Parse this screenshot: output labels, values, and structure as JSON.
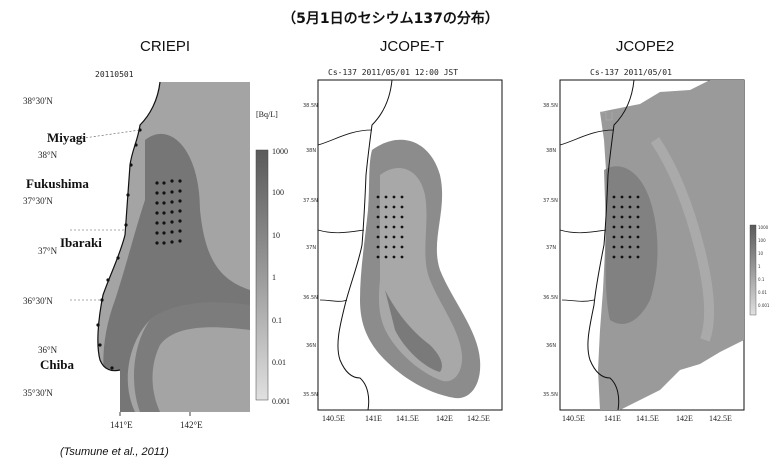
{
  "main_title": "（5月1日のセシウム137の分布）",
  "citation": "(Tsumune et al., 2011)",
  "panels": [
    {
      "model": "CRIEPI",
      "label": "20110501",
      "unit": "[Bq/L]",
      "colorbar": [
        "1000",
        "100",
        "10",
        "1",
        "0.1",
        "0.01",
        "0.001"
      ],
      "lat_ticks": [
        "38°30'N",
        "38°N",
        "37°30'N",
        "37°N",
        "36°30'N",
        "36°N",
        "35°30'N"
      ],
      "lon_ticks": [
        "141°E",
        "142°E"
      ],
      "prefectures": [
        "Miyagi",
        "Fukushima",
        "Ibaraki",
        "Chiba"
      ]
    },
    {
      "model": "JCOPE-T",
      "label": "Cs-137 2011/05/01 12:00 JST",
      "lat_ticks": [
        "38.5N",
        "38N",
        "37.5N",
        "37N",
        "36.5N",
        "36N",
        "35.5N"
      ],
      "lon_ticks": [
        "140.5E",
        "141E",
        "141.5E",
        "142E",
        "142.5E"
      ]
    },
    {
      "model": "JCOPE2",
      "label": "Cs-137 2011/05/01",
      "lat_ticks": [
        "38.5N",
        "38N",
        "37.5N",
        "37N",
        "36.5N",
        "36N",
        "35.5N"
      ],
      "lon_ticks": [
        "140.5E",
        "141E",
        "141.5E",
        "142E",
        "142.5E"
      ],
      "colorbar": [
        "1000",
        "100",
        "10",
        "1",
        "0.1",
        "0.01",
        "0.001"
      ]
    }
  ],
  "colors": {
    "high": "#6e6e6e",
    "mid": "#9a9a9a",
    "low": "#c8c8c8",
    "land": "#ffffff",
    "coast": "#111111"
  }
}
